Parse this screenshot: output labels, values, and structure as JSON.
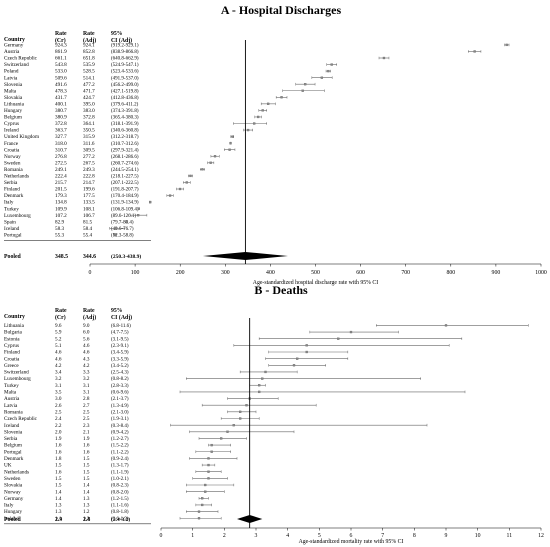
{
  "chart_data": [
    {
      "type": "forest",
      "title": "A - Hospital Discharges",
      "xlabel": "Age-standardized hospital discharge rate with 95% CI",
      "xlim": [
        0,
        1000
      ],
      "xticks": [
        0,
        100,
        200,
        300,
        400,
        500,
        600,
        700,
        800,
        900,
        1000
      ],
      "columns": [
        "Country",
        "Rate (Cr)",
        "Rate (Adj)",
        "95% CI (Adj)"
      ],
      "rows": [
        {
          "country": "Germany",
          "cr": "924.3",
          "adj": "924.1",
          "ci_text": "(919.2-929.1)",
          "est": 924.1,
          "lo": 919.2,
          "hi": 929.1
        },
        {
          "country": "Austria",
          "cr": "861.9",
          "adj": "852.8",
          "ci_text": "(838.9-866.8)",
          "est": 852.8,
          "lo": 838.9,
          "hi": 866.8
        },
        {
          "country": "Czech Republic",
          "cr": "661.1",
          "adj": "651.8",
          "ci_text": "(640.8-662.9)",
          "est": 651.8,
          "lo": 640.8,
          "hi": 662.9
        },
        {
          "country": "Switzerland",
          "cr": "543.8",
          "adj": "535.9",
          "ci_text": "(524.9-547.1)",
          "est": 535.9,
          "lo": 524.9,
          "hi": 547.1
        },
        {
          "country": "Poland",
          "cr": "533.0",
          "adj": "528.5",
          "ci_text": "(523.4-533.6)",
          "est": 528.5,
          "lo": 523.4,
          "hi": 533.6
        },
        {
          "country": "Latvia",
          "cr": "509.6",
          "adj": "514.1",
          "ci_text": "(491.9-537.0)",
          "est": 514.1,
          "lo": 491.9,
          "hi": 537.0
        },
        {
          "country": "Slovenia",
          "cr": "491.6",
          "adj": "477.2",
          "ci_text": "(456.2-499.0)",
          "est": 477.2,
          "lo": 456.2,
          "hi": 499.0
        },
        {
          "country": "Malta",
          "cr": "478.3",
          "adj": "471.7",
          "ci_text": "(427.1-519.8)",
          "est": 471.7,
          "lo": 427.1,
          "hi": 519.8
        },
        {
          "country": "Slovakia",
          "cr": "431.7",
          "adj": "424.7",
          "ci_text": "(412.8-436.8)",
          "est": 424.7,
          "lo": 412.8,
          "hi": 436.8
        },
        {
          "country": "Lithuania",
          "cr": "400.1",
          "adj": "395.0",
          "ci_text": "(379.6-411.2)",
          "est": 395.0,
          "lo": 379.6,
          "hi": 411.2
        },
        {
          "country": "Hungary",
          "cr": "380.7",
          "adj": "383.0",
          "ci_text": "(374.3-391.8)",
          "est": 383.0,
          "lo": 374.3,
          "hi": 391.8
        },
        {
          "country": "Belgium",
          "cr": "380.9",
          "adj": "372.8",
          "ci_text": "(365.4-380.3)",
          "est": 372.8,
          "lo": 365.4,
          "hi": 380.3
        },
        {
          "country": "Cyprus",
          "cr": "372.8",
          "adj": "364.1",
          "ci_text": "(318.1-391.9)",
          "est": 364.1,
          "lo": 318.1,
          "hi": 391.9
        },
        {
          "country": "Ireland",
          "cr": "363.7",
          "adj": "350.5",
          "ci_text": "(340.6-360.8)",
          "est": 350.5,
          "lo": 340.6,
          "hi": 360.8
        },
        {
          "country": "United Kingdom",
          "cr": "327.7",
          "adj": "315.9",
          "ci_text": "(312.2-318.7)",
          "est": 315.9,
          "lo": 312.2,
          "hi": 318.7
        },
        {
          "country": "France",
          "cr": "318.0",
          "adj": "311.6",
          "ci_text": "(310.7-312.6)",
          "est": 311.6,
          "lo": 310.7,
          "hi": 312.6
        },
        {
          "country": "Croatia",
          "cr": "310.7",
          "adj": "309.5",
          "ci_text": "(297.9-321.4)",
          "est": 309.5,
          "lo": 297.9,
          "hi": 321.4
        },
        {
          "country": "Norway",
          "cr": "276.8",
          "adj": "277.2",
          "ci_text": "(268.1-286.6)",
          "est": 277.2,
          "lo": 268.1,
          "hi": 286.6
        },
        {
          "country": "Sweden",
          "cr": "272.5",
          "adj": "267.5",
          "ci_text": "(260.7-274.6)",
          "est": 267.5,
          "lo": 260.7,
          "hi": 274.6
        },
        {
          "country": "Romania",
          "cr": "249.1",
          "adj": "249.3",
          "ci_text": "(244.5-254.1)",
          "est": 249.3,
          "lo": 244.5,
          "hi": 254.1
        },
        {
          "country": "Netherlands",
          "cr": "222.4",
          "adj": "222.8",
          "ci_text": "(218.1-227.5)",
          "est": 222.8,
          "lo": 218.1,
          "hi": 227.5
        },
        {
          "country": "Serbia",
          "cr": "215.7",
          "adj": "214.7",
          "ci_text": "(207.1-222.5)",
          "est": 214.7,
          "lo": 207.1,
          "hi": 222.5
        },
        {
          "country": "Finland",
          "cr": "201.5",
          "adj": "199.6",
          "ci_text": "(191.8-207.7)",
          "est": 199.6,
          "lo": 191.8,
          "hi": 207.7
        },
        {
          "country": "Denmark",
          "cr": "179.3",
          "adj": "177.5",
          "ci_text": "(170.4-184.9)",
          "est": 177.5,
          "lo": 170.4,
          "hi": 184.9
        },
        {
          "country": "Italy",
          "cr": "134.8",
          "adj": "133.5",
          "ci_text": "(131.9-134.9)",
          "est": 133.5,
          "lo": 131.9,
          "hi": 134.9
        },
        {
          "country": "Turkey",
          "cr": "109.9",
          "adj": "108.1",
          "ci_text": "(106.8-109.4)",
          "est": 108.1,
          "lo": 106.8,
          "hi": 109.4
        },
        {
          "country": "Luxembourg",
          "cr": "107.2",
          "adj": "106.7",
          "ci_text": "(89.6-126.1)",
          "est": 106.7,
          "lo": 89.6,
          "hi": 126.1
        },
        {
          "country": "Spain",
          "cr": "82.9",
          "adj": "81.5",
          "ci_text": "(79.7-83.4)",
          "est": 81.5,
          "lo": 79.7,
          "hi": 83.4
        },
        {
          "country": "Iceland",
          "cr": "58.3",
          "adj": "58.4",
          "ci_text": "(43.6-76.7)",
          "est": 58.4,
          "lo": 43.6,
          "hi": 76.7
        },
        {
          "country": "Portugal",
          "cr": "55.3",
          "adj": "55.4",
          "ci_text": "(52.3-58.8)",
          "est": 55.4,
          "lo": 52.3,
          "hi": 58.8
        }
      ],
      "pooled": {
        "label": "Pooled",
        "cr": "348.5",
        "adj": "344.6",
        "ci_text": "(250.3-438.9)",
        "est": 344.6,
        "lo": 250.3,
        "hi": 438.9
      }
    },
    {
      "type": "forest",
      "title": "B - Deaths",
      "xlabel": "Age-standardized mortality rate with 95% CI",
      "xlim": [
        0,
        12
      ],
      "xticks": [
        0,
        1,
        2,
        3,
        4,
        5,
        6,
        7,
        8,
        9,
        10,
        11,
        12
      ],
      "columns": [
        "Country",
        "Rate (Cr)",
        "Rate (Adj)",
        "95% CI (Adj)"
      ],
      "rows": [
        {
          "country": "Lithuania",
          "cr": "9.6",
          "adj": "9.0",
          "ci_text": "(6.8-11.6)",
          "est": 9.0,
          "lo": 6.8,
          "hi": 11.6
        },
        {
          "country": "Bulgaria",
          "cr": "5.9",
          "adj": "6.0",
          "ci_text": "(4.7-7.5)",
          "est": 6.0,
          "lo": 4.7,
          "hi": 7.5
        },
        {
          "country": "Estonia",
          "cr": "5.2",
          "adj": "5.6",
          "ci_text": "(3.1-9.5)",
          "est": 5.6,
          "lo": 3.1,
          "hi": 9.5
        },
        {
          "country": "Cyprus",
          "cr": "5.1",
          "adj": "4.6",
          "ci_text": "(2.3-9.1)",
          "est": 4.6,
          "lo": 2.3,
          "hi": 9.1
        },
        {
          "country": "Finland",
          "cr": "4.6",
          "adj": "4.6",
          "ci_text": "(3.4-5.9)",
          "est": 4.6,
          "lo": 3.4,
          "hi": 5.9
        },
        {
          "country": "Croatia",
          "cr": "4.6",
          "adj": "4.3",
          "ci_text": "(3.3-5.9)",
          "est": 4.3,
          "lo": 3.3,
          "hi": 5.9
        },
        {
          "country": "Greece",
          "cr": "4.2",
          "adj": "4.2",
          "ci_text": "(3.4-5.2)",
          "est": 4.2,
          "lo": 3.4,
          "hi": 5.2
        },
        {
          "country": "Switzerland",
          "cr": "3.4",
          "adj": "3.3",
          "ci_text": "(2.5-4.3)",
          "est": 3.3,
          "lo": 2.5,
          "hi": 4.3
        },
        {
          "country": "Luxembourg",
          "cr": "3.2",
          "adj": "3.2",
          "ci_text": "(0.8-8.2)",
          "est": 3.2,
          "lo": 0.8,
          "hi": 8.2
        },
        {
          "country": "Turkey",
          "cr": "3.1",
          "adj": "3.1",
          "ci_text": "(2.8-3.3)",
          "est": 3.1,
          "lo": 2.8,
          "hi": 3.3
        },
        {
          "country": "Malta",
          "cr": "3.5",
          "adj": "3.1",
          "ci_text": "(0.6-9.6)",
          "est": 3.1,
          "lo": 0.6,
          "hi": 9.6
        },
        {
          "country": "Austria",
          "cr": "3.0",
          "adj": "2.8",
          "ci_text": "(2.1-3.7)",
          "est": 2.8,
          "lo": 2.1,
          "hi": 3.7
        },
        {
          "country": "Latvia",
          "cr": "2.6",
          "adj": "2.7",
          "ci_text": "(1.3-4.9)",
          "est": 2.7,
          "lo": 1.3,
          "hi": 4.9
        },
        {
          "country": "Romania",
          "cr": "2.5",
          "adj": "2.5",
          "ci_text": "(2.1-3.0)",
          "est": 2.5,
          "lo": 2.1,
          "hi": 3.0
        },
        {
          "country": "Czech Republic",
          "cr": "2.4",
          "adj": "2.5",
          "ci_text": "(1.9-3.1)",
          "est": 2.5,
          "lo": 1.9,
          "hi": 3.1
        },
        {
          "country": "Iceland",
          "cr": "2.2",
          "adj": "2.3",
          "ci_text": "(0.3-8.4)",
          "est": 2.3,
          "lo": 0.3,
          "hi": 8.4
        },
        {
          "country": "Slovenia",
          "cr": "2.0",
          "adj": "2.1",
          "ci_text": "(0.9-4.2)",
          "est": 2.1,
          "lo": 0.9,
          "hi": 4.2
        },
        {
          "country": "Serbia",
          "cr": "1.9",
          "adj": "1.9",
          "ci_text": "(1.2-2.7)",
          "est": 1.9,
          "lo": 1.2,
          "hi": 2.7
        },
        {
          "country": "Belgium",
          "cr": "1.6",
          "adj": "1.6",
          "ci_text": "(1.5-2.2)",
          "est": 1.6,
          "lo": 1.5,
          "hi": 2.2
        },
        {
          "country": "Portugal",
          "cr": "1.6",
          "adj": "1.6",
          "ci_text": "(1.1-2.2)",
          "est": 1.6,
          "lo": 1.1,
          "hi": 2.2
        },
        {
          "country": "Denmark",
          "cr": "1.8",
          "adj": "1.5",
          "ci_text": "(0.9-2.4)",
          "est": 1.5,
          "lo": 0.9,
          "hi": 2.4
        },
        {
          "country": "UK",
          "cr": "1.5",
          "adj": "1.5",
          "ci_text": "(1.3-1.7)",
          "est": 1.5,
          "lo": 1.3,
          "hi": 1.7
        },
        {
          "country": "Netherlands",
          "cr": "1.6",
          "adj": "1.5",
          "ci_text": "(1.1-1.9)",
          "est": 1.5,
          "lo": 1.1,
          "hi": 1.9
        },
        {
          "country": "Sweden",
          "cr": "1.5",
          "adj": "1.5",
          "ci_text": "(1.0-2.1)",
          "est": 1.5,
          "lo": 1.0,
          "hi": 2.1
        },
        {
          "country": "Slovakia",
          "cr": "1.5",
          "adj": "1.4",
          "ci_text": "(0.8-2.3)",
          "est": 1.4,
          "lo": 0.8,
          "hi": 2.3
        },
        {
          "country": "Norway",
          "cr": "1.4",
          "adj": "1.4",
          "ci_text": "(0.8-2.0)",
          "est": 1.4,
          "lo": 0.8,
          "hi": 2.0
        },
        {
          "country": "Germany",
          "cr": "1.4",
          "adj": "1.3",
          "ci_text": "(1.2-1.5)",
          "est": 1.3,
          "lo": 1.2,
          "hi": 1.5
        },
        {
          "country": "Italy",
          "cr": "1.3",
          "adj": "1.3",
          "ci_text": "(1.1-1.6)",
          "est": 1.3,
          "lo": 1.1,
          "hi": 1.6
        },
        {
          "country": "Hungary",
          "cr": "1.3",
          "adj": "1.2",
          "ci_text": "(0.8-1.8)",
          "est": 1.2,
          "lo": 0.8,
          "hi": 1.8
        },
        {
          "country": "Ireland",
          "cr": "1.1",
          "adj": "1.2",
          "ci_text": "(0.6-1.9)",
          "est": 1.2,
          "lo": 0.6,
          "hi": 1.9
        }
      ],
      "pooled": {
        "label": "Pooled",
        "cr": "2.9",
        "adj": "2.8",
        "ci_text": "(2.4-3.2)",
        "est": 2.8,
        "lo": 2.4,
        "hi": 3.2
      }
    }
  ]
}
